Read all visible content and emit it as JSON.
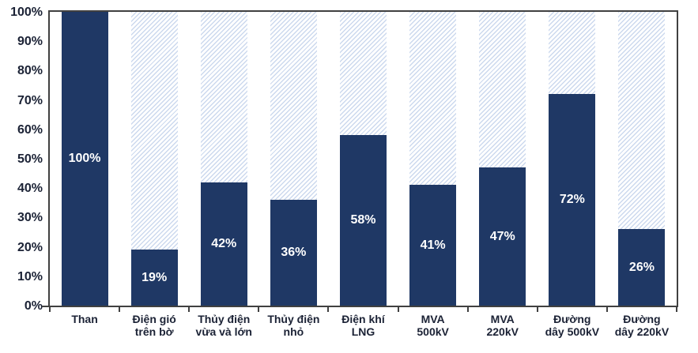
{
  "chart_data": {
    "type": "bar",
    "subtype": "100-percent-stacked-vertical",
    "title": "",
    "xlabel": "",
    "ylabel": "",
    "categories": [
      "Than",
      "Điện gió trên bờ",
      "Thủy điện vừa và lớn",
      "Thủy điện nhỏ",
      "Điện khí LNG",
      "MVA 500kV",
      "MVA 220kV",
      "Đường dây 500kV",
      "Đường dây 220kV"
    ],
    "category_label_lines": [
      [
        "Than"
      ],
      [
        "Điện gió",
        "trên bờ"
      ],
      [
        "Thủy điện",
        "vừa và lớn"
      ],
      [
        "Thủy điện",
        "nhỏ"
      ],
      [
        "Điện khí",
        "LNG"
      ],
      [
        "MVA",
        "500kV"
      ],
      [
        "MVA",
        "220kV"
      ],
      [
        "Đường",
        "dây 500kV"
      ],
      [
        "Đường",
        "dây 220kV"
      ]
    ],
    "series": [
      {
        "name": "filled-solid",
        "values": [
          100,
          19,
          42,
          36,
          58,
          41,
          47,
          72,
          26
        ]
      },
      {
        "name": "remaining-hatched",
        "values": [
          0,
          81,
          58,
          64,
          42,
          59,
          53,
          28,
          74
        ]
      }
    ],
    "values": [
      100,
      19,
      42,
      36,
      58,
      41,
      47,
      72,
      26
    ],
    "value_labels": [
      "100%",
      "19%",
      "42%",
      "36%",
      "58%",
      "41%",
      "47%",
      "72%",
      "26%"
    ],
    "ylim": [
      0,
      100
    ],
    "yticks": [
      "0%",
      "10%",
      "20%",
      "30%",
      "40%",
      "50%",
      "60%",
      "70%",
      "80%",
      "90%",
      "100%"
    ],
    "grid": false,
    "legend": "none"
  },
  "colors": {
    "bar_fill": "#1F3865",
    "hatch_stripe": "#CCD9EE",
    "hatch_background": "#FFFFFF",
    "axis_border": "#404040",
    "axis_text": "#1B2235",
    "bar_value_text": "#FFFFFF"
  }
}
